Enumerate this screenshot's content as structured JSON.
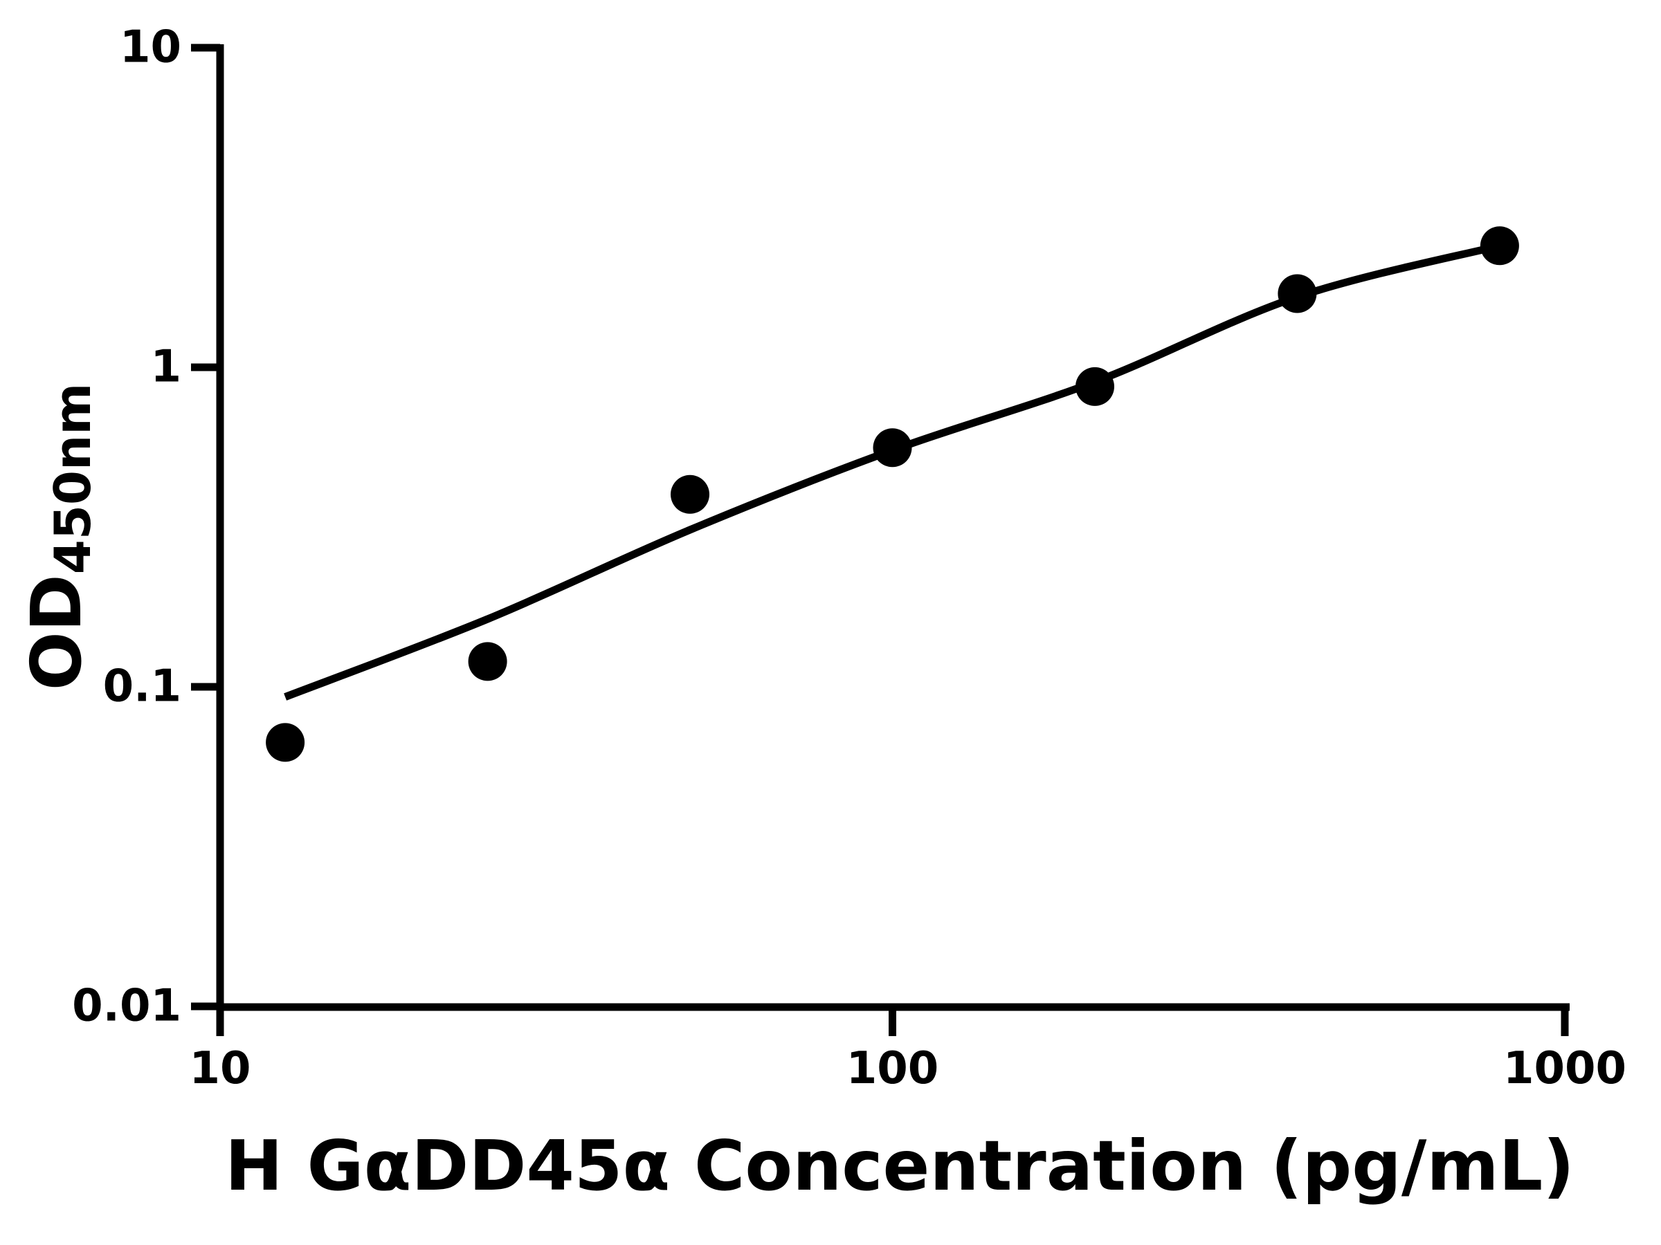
{
  "figure": {
    "background": "#ffffff",
    "ink_color": "#000000"
  },
  "chart_data": {
    "type": "scatter",
    "title": "",
    "xlabel": "H GαDD45α Concentration (pg/mL)",
    "ylabel": "OD",
    "ylabel_subscript": "450nm",
    "x_scale": "log",
    "y_scale": "log",
    "xlim": [
      10,
      1000
    ],
    "ylim": [
      0.01,
      10
    ],
    "grid": false,
    "legend": "none",
    "x_ticks": [
      {
        "label": "10",
        "value": 10
      },
      {
        "label": "100",
        "value": 100
      },
      {
        "label": "1000",
        "value": 1000
      }
    ],
    "y_ticks": [
      {
        "label": "10",
        "value": 10
      },
      {
        "label": "1",
        "value": 1
      },
      {
        "label": "0.1",
        "value": 0.1
      },
      {
        "label": "0.01",
        "value": 0.01
      }
    ],
    "series": [
      {
        "name": "standard-points",
        "type": "scatter",
        "marker": "filled-circle",
        "color": "#000000",
        "points": [
          {
            "x": 12.5,
            "y": 0.067
          },
          {
            "x": 25,
            "y": 0.12
          },
          {
            "x": 50,
            "y": 0.4
          },
          {
            "x": 100,
            "y": 0.56
          },
          {
            "x": 200,
            "y": 0.87
          },
          {
            "x": 400,
            "y": 1.7
          },
          {
            "x": 800,
            "y": 2.4
          }
        ]
      },
      {
        "name": "fit-curve",
        "type": "line",
        "color": "#000000",
        "points": [
          {
            "x": 12.5,
            "y": 0.093
          },
          {
            "x": 25,
            "y": 0.163
          },
          {
            "x": 50,
            "y": 0.31
          },
          {
            "x": 100,
            "y": 0.55
          },
          {
            "x": 200,
            "y": 0.9
          },
          {
            "x": 400,
            "y": 1.66
          },
          {
            "x": 800,
            "y": 2.4
          }
        ]
      }
    ]
  }
}
